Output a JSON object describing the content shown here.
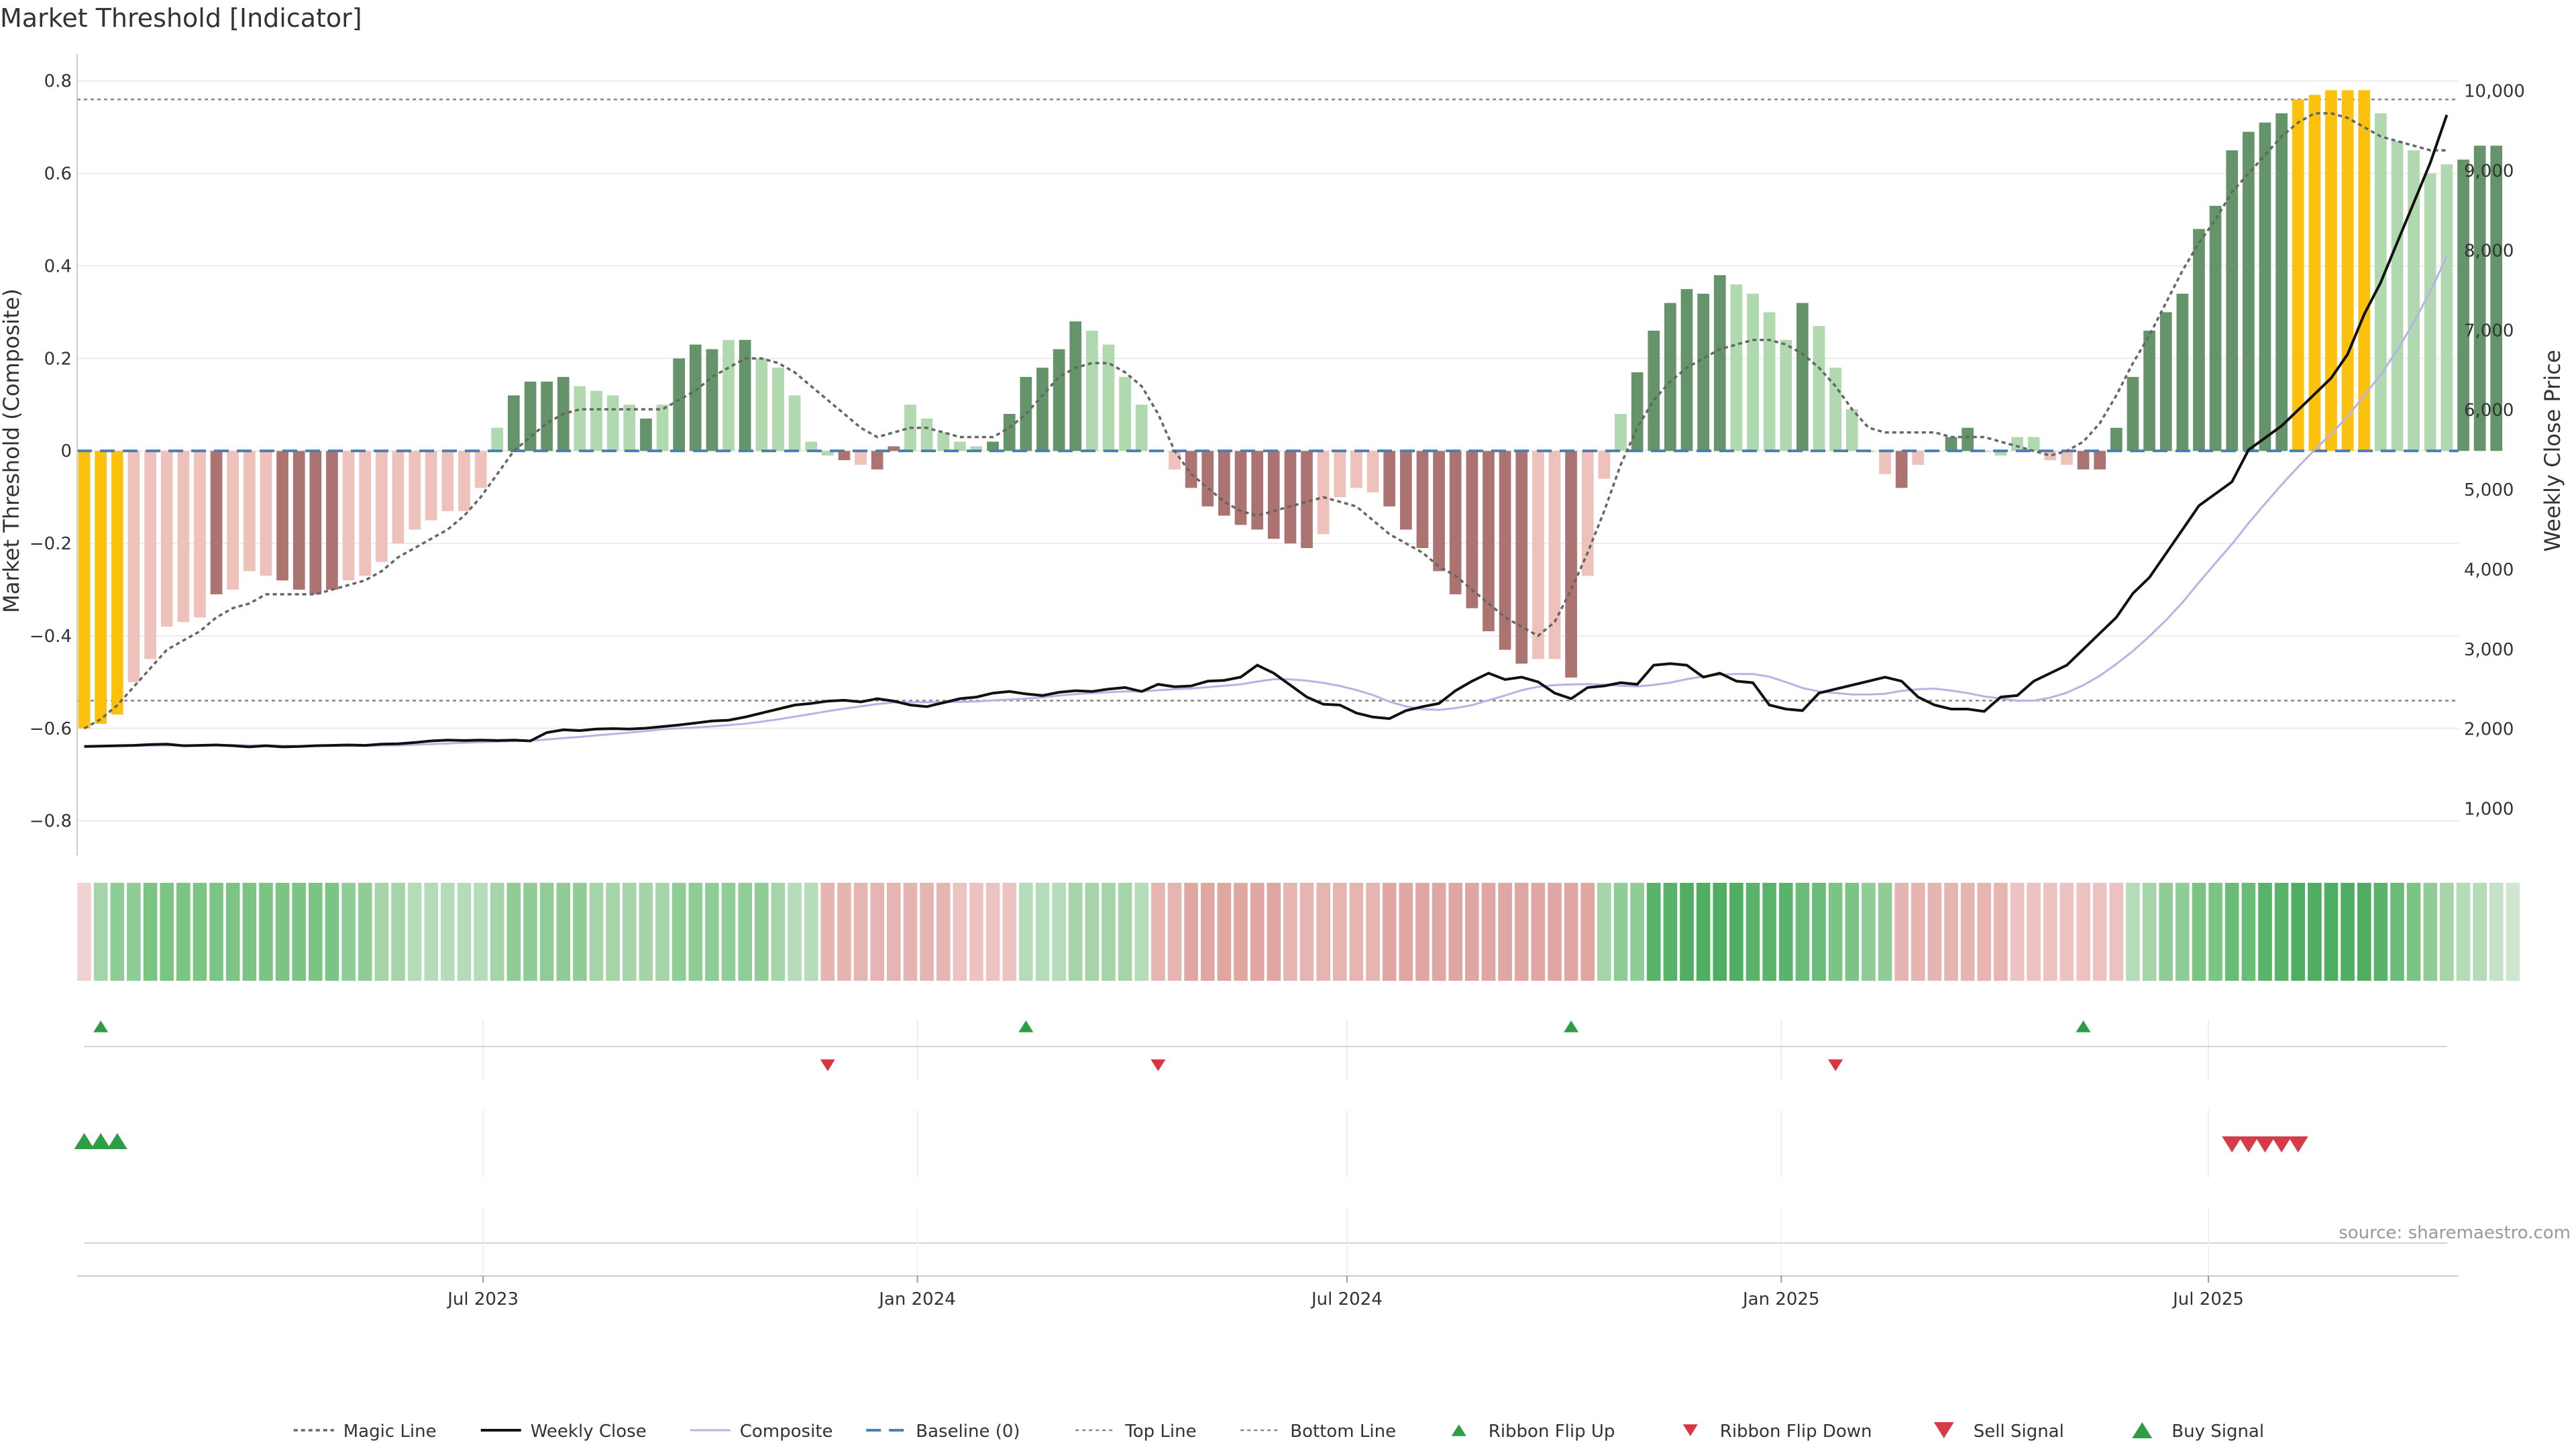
{
  "title": "Market Threshold [Indicator]",
  "source": "source: sharemaestro.com",
  "colors": {
    "strong_up": "#65936a",
    "weak_up": "#b0d9b0",
    "strong_down": "#ab7470",
    "weak_down": "#efc1bb",
    "extreme": "#fcc10d",
    "price": "#111111",
    "composite": "#b9b2e6",
    "magic": "#666666",
    "baseline": "#4a7fb5",
    "threshold": "#888888",
    "buy": "#2b9e46",
    "sell": "#d63c48"
  },
  "chart_data": {
    "type": "bar",
    "title": "Market Threshold [Indicator]",
    "ylabel": "Market Threshold (Composite)",
    "ylabel_right": "Weekly Close Price",
    "ylim": [
      -0.86,
      0.83
    ],
    "ylim_right": [
      500,
      10300
    ],
    "yticks": [
      -0.8,
      -0.6,
      -0.4,
      -0.2,
      0,
      0.2,
      0.4,
      0.6,
      0.8
    ],
    "ytick_labels": [
      "−0.8",
      "−0.6",
      "−0.4",
      "−0.2",
      "0",
      "0.2",
      "0.4",
      "0.6",
      "0.8"
    ],
    "yticks_right": [
      1000,
      2000,
      3000,
      4000,
      5000,
      6000,
      7000,
      8000,
      9000,
      10000
    ],
    "ytick_labels_right": [
      "1,000",
      "2,000",
      "3,000",
      "4,000",
      "5,000",
      "6,000",
      "7,000",
      "8,000",
      "9,000",
      "10,000"
    ],
    "x_start": "2023-01-13",
    "x_step_days": 7,
    "xlim": [
      "2023-01-10",
      "2025-10-15"
    ],
    "x_ticks": [
      {
        "date": "2023-07-01",
        "label": "Jul 2023"
      },
      {
        "date": "2024-01-01",
        "label": "Jan 2024"
      },
      {
        "date": "2024-07-01",
        "label": "Jul 2024"
      },
      {
        "date": "2025-01-01",
        "label": "Jan 2025"
      },
      {
        "date": "2025-07-01",
        "label": "Jul 2025"
      }
    ],
    "top_line": 0.76,
    "bottom_line": -0.54,
    "baseline": 0,
    "composite": [
      -0.6,
      -0.59,
      -0.57,
      -0.5,
      -0.45,
      -0.38,
      -0.37,
      -0.36,
      -0.31,
      -0.3,
      -0.26,
      -0.27,
      -0.28,
      -0.3,
      -0.31,
      -0.3,
      -0.28,
      -0.27,
      -0.24,
      -0.2,
      -0.17,
      -0.15,
      -0.13,
      -0.13,
      -0.08,
      0.05,
      0.12,
      0.15,
      0.15,
      0.16,
      0.14,
      0.13,
      0.12,
      0.1,
      0.07,
      0.1,
      0.2,
      0.23,
      0.22,
      0.24,
      0.24,
      0.2,
      0.18,
      0.12,
      0.02,
      -0.01,
      -0.02,
      -0.03,
      -0.04,
      0.01,
      0.1,
      0.07,
      0.04,
      0.02,
      0.01,
      0.02,
      0.08,
      0.16,
      0.18,
      0.22,
      0.28,
      0.26,
      0.23,
      0.16,
      0.1,
      0.0,
      -0.04,
      -0.08,
      -0.12,
      -0.14,
      -0.16,
      -0.17,
      -0.19,
      -0.2,
      -0.21,
      -0.18,
      -0.1,
      -0.08,
      -0.09,
      -0.12,
      -0.17,
      -0.21,
      -0.26,
      -0.31,
      -0.34,
      -0.39,
      -0.43,
      -0.46,
      -0.45,
      -0.45,
      -0.49,
      -0.27,
      -0.06,
      0.08,
      0.17,
      0.26,
      0.32,
      0.35,
      0.34,
      0.38,
      0.36,
      0.34,
      0.3,
      0.24,
      0.32,
      0.27,
      0.18,
      0.09,
      0.0,
      -0.05,
      -0.08,
      -0.03,
      0.0,
      0.03,
      0.05,
      0.0,
      -0.01,
      0.03,
      0.03,
      -0.02,
      -0.03,
      -0.04,
      -0.04,
      0.05,
      0.16,
      0.26,
      0.3,
      0.34,
      0.48,
      0.53,
      0.65,
      0.69,
      0.71,
      0.73,
      0.76,
      0.77,
      0.78,
      0.78,
      0.78,
      0.73,
      0.67,
      0.65,
      0.6,
      0.62,
      0.63,
      0.66,
      0.66
    ],
    "magic_line": [
      -0.6,
      -0.58,
      -0.55,
      -0.51,
      -0.47,
      -0.43,
      -0.41,
      -0.39,
      -0.36,
      -0.34,
      -0.33,
      -0.31,
      -0.31,
      -0.31,
      -0.31,
      -0.3,
      -0.29,
      -0.28,
      -0.26,
      -0.23,
      -0.21,
      -0.19,
      -0.17,
      -0.14,
      -0.1,
      -0.05,
      0.0,
      0.03,
      0.06,
      0.08,
      0.09,
      0.09,
      0.09,
      0.09,
      0.09,
      0.09,
      0.11,
      0.13,
      0.16,
      0.18,
      0.2,
      0.2,
      0.19,
      0.17,
      0.14,
      0.11,
      0.08,
      0.05,
      0.03,
      0.04,
      0.05,
      0.05,
      0.04,
      0.03,
      0.03,
      0.03,
      0.05,
      0.08,
      0.12,
      0.16,
      0.18,
      0.19,
      0.19,
      0.17,
      0.14,
      0.08,
      0.0,
      -0.05,
      -0.08,
      -0.11,
      -0.13,
      -0.14,
      -0.13,
      -0.12,
      -0.11,
      -0.1,
      -0.11,
      -0.12,
      -0.15,
      -0.18,
      -0.2,
      -0.22,
      -0.25,
      -0.27,
      -0.3,
      -0.33,
      -0.36,
      -0.38,
      -0.4,
      -0.37,
      -0.3,
      -0.22,
      -0.13,
      -0.03,
      0.05,
      0.11,
      0.15,
      0.18,
      0.2,
      0.22,
      0.23,
      0.24,
      0.24,
      0.23,
      0.21,
      0.18,
      0.14,
      0.09,
      0.05,
      0.04,
      0.04,
      0.04,
      0.04,
      0.03,
      0.03,
      0.03,
      0.02,
      0.01,
      0.0,
      -0.01,
      0.0,
      0.02,
      0.06,
      0.12,
      0.19,
      0.25,
      0.32,
      0.39,
      0.45,
      0.5,
      0.56,
      0.6,
      0.64,
      0.68,
      0.71,
      0.73,
      0.73,
      0.72,
      0.7,
      0.68,
      0.67,
      0.66,
      0.65,
      0.65
    ],
    "weekly_close": [
      1780,
      1785,
      1790,
      1795,
      1805,
      1810,
      1790,
      1795,
      1800,
      1790,
      1775,
      1790,
      1775,
      1780,
      1790,
      1795,
      1800,
      1795,
      1810,
      1815,
      1830,
      1850,
      1860,
      1855,
      1860,
      1855,
      1860,
      1850,
      1955,
      1990,
      1980,
      2000,
      2005,
      2000,
      2010,
      2030,
      2050,
      2075,
      2100,
      2110,
      2150,
      2200,
      2250,
      2300,
      2320,
      2350,
      2360,
      2340,
      2380,
      2350,
      2300,
      2280,
      2330,
      2380,
      2400,
      2450,
      2470,
      2440,
      2420,
      2460,
      2480,
      2470,
      2500,
      2520,
      2470,
      2560,
      2530,
      2540,
      2600,
      2610,
      2650,
      2800,
      2700,
      2550,
      2400,
      2310,
      2300,
      2200,
      2150,
      2130,
      2230,
      2280,
      2320,
      2480,
      2600,
      2700,
      2620,
      2650,
      2590,
      2450,
      2380,
      2520,
      2540,
      2580,
      2560,
      2800,
      2820,
      2800,
      2650,
      2700,
      2600,
      2580,
      2300,
      2250,
      2230,
      2450,
      2500,
      2550,
      2600,
      2650,
      2600,
      2400,
      2300,
      2250,
      2250,
      2220,
      2400,
      2420,
      2600,
      2700,
      2800,
      3000,
      3200,
      3400,
      3700,
      3900,
      4200,
      4500,
      4800,
      4950,
      5100,
      5500,
      5650,
      5800,
      6000,
      6200,
      6400,
      6700,
      7200,
      7600,
      8100,
      8600,
      9100,
      9700
    ],
    "bar_colors": [
      "extreme",
      "extreme",
      "extreme",
      "weak_down",
      "weak_down",
      "weak_down",
      "weak_down",
      "weak_down",
      "strong_down",
      "weak_down",
      "weak_down",
      "weak_down",
      "strong_down",
      "strong_down",
      "strong_down",
      "strong_down",
      "weak_down",
      "weak_down",
      "weak_down",
      "weak_down",
      "weak_down",
      "weak_down",
      "weak_down",
      "weak_down",
      "weak_down",
      "weak_up",
      "strong_up",
      "strong_up",
      "strong_up",
      "strong_up",
      "weak_up",
      "weak_up",
      "weak_up",
      "weak_up",
      "strong_up",
      "weak_up",
      "strong_up",
      "strong_up",
      "strong_up",
      "weak_up",
      "strong_up",
      "weak_up",
      "weak_up",
      "weak_up",
      "weak_up",
      "weak_up",
      "strong_down",
      "weak_down",
      "strong_down",
      "strong_down",
      "weak_up",
      "weak_up",
      "weak_up",
      "weak_up",
      "weak_up",
      "strong_up",
      "strong_up",
      "strong_up",
      "strong_up",
      "strong_up",
      "strong_up",
      "weak_up",
      "weak_up",
      "weak_up",
      "weak_up",
      "weak_down",
      "weak_down",
      "strong_down",
      "strong_down",
      "strong_down",
      "strong_down",
      "strong_down",
      "strong_down",
      "strong_down",
      "strong_down",
      "weak_down",
      "weak_down",
      "weak_down",
      "weak_down",
      "strong_down",
      "strong_down",
      "strong_down",
      "strong_down",
      "strong_down",
      "strong_down",
      "strong_down",
      "strong_down",
      "strong_down",
      "weak_down",
      "weak_down",
      "strong_down",
      "weak_down",
      "weak_down",
      "weak_up",
      "strong_up",
      "strong_up",
      "strong_up",
      "strong_up",
      "strong_up",
      "strong_up",
      "weak_up",
      "weak_up",
      "weak_up",
      "weak_up",
      "strong_up",
      "weak_up",
      "weak_up",
      "weak_up",
      "weak_up",
      "weak_down",
      "strong_down",
      "weak_down",
      "weak_down",
      "strong_up",
      "strong_up",
      "weak_up",
      "weak_up",
      "weak_up",
      "weak_up",
      "weak_down",
      "weak_down",
      "strong_down",
      "strong_down",
      "strong_up",
      "strong_up",
      "strong_up",
      "strong_up",
      "strong_up",
      "strong_up",
      "strong_up",
      "strong_up",
      "strong_up",
      "strong_up",
      "strong_up",
      "extreme",
      "extreme",
      "extreme",
      "extreme",
      "extreme",
      "weak_up",
      "weak_up",
      "weak_up",
      "weak_up",
      "weak_up",
      "strong_up",
      "strong_up",
      "strong_up"
    ],
    "ribbon_colors": [
      "#f2d2d0",
      "#a4d4a8",
      "#90cc96",
      "#90cc96",
      "#7cc484",
      "#7cc484",
      "#7cc484",
      "#7cc484",
      "#7cc484",
      "#7cc484",
      "#7cc484",
      "#7cc484",
      "#7cc484",
      "#7cc484",
      "#7cc484",
      "#7cc484",
      "#90cc96",
      "#90cc96",
      "#a4d4a8",
      "#a4d4a8",
      "#b5dcb9",
      "#b5dcb9",
      "#b5dcb9",
      "#b5dcb9",
      "#b5dcb9",
      "#a4d4a8",
      "#90cc96",
      "#90cc96",
      "#90cc96",
      "#90cc96",
      "#90cc96",
      "#a4d4a8",
      "#a4d4a8",
      "#a4d4a8",
      "#a4d4a8",
      "#a4d4a8",
      "#90cc96",
      "#90cc96",
      "#90cc96",
      "#90cc96",
      "#90cc96",
      "#90cc96",
      "#a4d4a8",
      "#b5dcb9",
      "#b5dcb9",
      "#e6b4b1",
      "#e6b4b1",
      "#e6b4b1",
      "#e6b4b1",
      "#e6b4b1",
      "#e6b4b1",
      "#e6b4b1",
      "#e6b4b1",
      "#ecc3c0",
      "#ecc3c0",
      "#ecc3c0",
      "#ecc3c0",
      "#b5dcb9",
      "#b5dcb9",
      "#b5dcb9",
      "#a4d4a8",
      "#a4d4a8",
      "#a4d4a8",
      "#a4d4a8",
      "#b5dcb9",
      "#e6b4b1",
      "#e6b4b1",
      "#e0a6a2",
      "#e0a6a2",
      "#e0a6a2",
      "#e0a6a2",
      "#e0a6a2",
      "#e0a6a2",
      "#e6b4b1",
      "#e6b4b1",
      "#e6b4b1",
      "#e6b4b1",
      "#e6b4b1",
      "#e6b4b1",
      "#e0a6a2",
      "#e0a6a2",
      "#e0a6a2",
      "#e0a6a2",
      "#e0a6a2",
      "#e0a6a2",
      "#e0a6a2",
      "#e0a6a2",
      "#e0a6a2",
      "#e0a6a2",
      "#e0a6a2",
      "#e0a6a2",
      "#e0a6a2",
      "#a4d4a8",
      "#90cc96",
      "#90cc96",
      "#5ab36a",
      "#5ab36a",
      "#4fae61",
      "#4fae61",
      "#4fae61",
      "#4fae61",
      "#5ab36a",
      "#5ab36a",
      "#5ab36a",
      "#6abc78",
      "#6abc78",
      "#7cc484",
      "#7cc484",
      "#90cc96",
      "#90cc96",
      "#e6b4b1",
      "#e6b4b1",
      "#e6b4b1",
      "#e6b4b1",
      "#e6b4b1",
      "#e6b4b1",
      "#e6b4b1",
      "#ecc3c0",
      "#ecc3c0",
      "#ecc3c0",
      "#ecc3c0",
      "#ecc3c0",
      "#ecc3c0",
      "#ecc3c0",
      "#b5dcb9",
      "#a4d4a8",
      "#90cc96",
      "#90cc96",
      "#7cc484",
      "#7cc484",
      "#6abc78",
      "#6abc78",
      "#5ab36a",
      "#5ab36a",
      "#4fae61",
      "#4fae61",
      "#4fae61",
      "#4fae61",
      "#4fae61",
      "#5ab36a",
      "#6abc78",
      "#7cc484",
      "#90cc96",
      "#a4d4a8",
      "#b5dcb9",
      "#b5dcb9",
      "#c4e2c7",
      "#cfe7d1"
    ],
    "ribbon_flip_up_weeks": [
      1,
      57,
      90,
      121
    ],
    "ribbon_flip_down_weeks": [
      45,
      65,
      106
    ],
    "buy_signal_weeks": [
      0,
      1,
      2
    ],
    "sell_signal_weeks": [
      130,
      131,
      132,
      133,
      134
    ],
    "legend": [
      "Magic Line",
      "Weekly Close",
      "Composite",
      "Baseline (0)",
      "Top Line",
      "Bottom Line",
      "Ribbon Flip Up",
      "Ribbon Flip Down",
      "Sell Signal",
      "Buy Signal"
    ],
    "legend_position": "bottom center"
  }
}
